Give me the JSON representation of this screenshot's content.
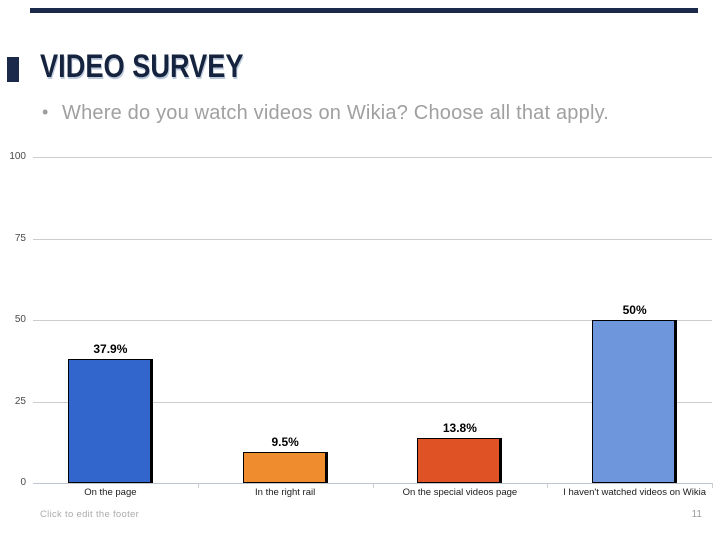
{
  "slide": {
    "title": "VIDEO SURVEY",
    "bullet_glyph": "•",
    "bullet": "Where do you watch videos on Wikia? Choose all that apply.",
    "footer": "Click to edit the footer",
    "page_number": "11",
    "accent_color": "#1B2A4A"
  },
  "chart_data": {
    "type": "bar",
    "title": "",
    "xlabel": "",
    "ylabel": "",
    "categories": [
      "On the page",
      "In the right rail",
      "On the special videos page",
      "I haven't watched videos on Wikia"
    ],
    "values": [
      37.9,
      9.5,
      13.8,
      50
    ],
    "value_labels": [
      "37.9%",
      "9.5%",
      "13.8%",
      "50%"
    ],
    "bar_colors": [
      "#3366CC",
      "#EE8C2E",
      "#DE5226",
      "#6E96DC"
    ],
    "ylim": [
      0,
      100
    ],
    "yticks": [
      0,
      25,
      50,
      75,
      100
    ],
    "grid": true,
    "gridline_color": "#CCCCCC",
    "legend": "none"
  }
}
